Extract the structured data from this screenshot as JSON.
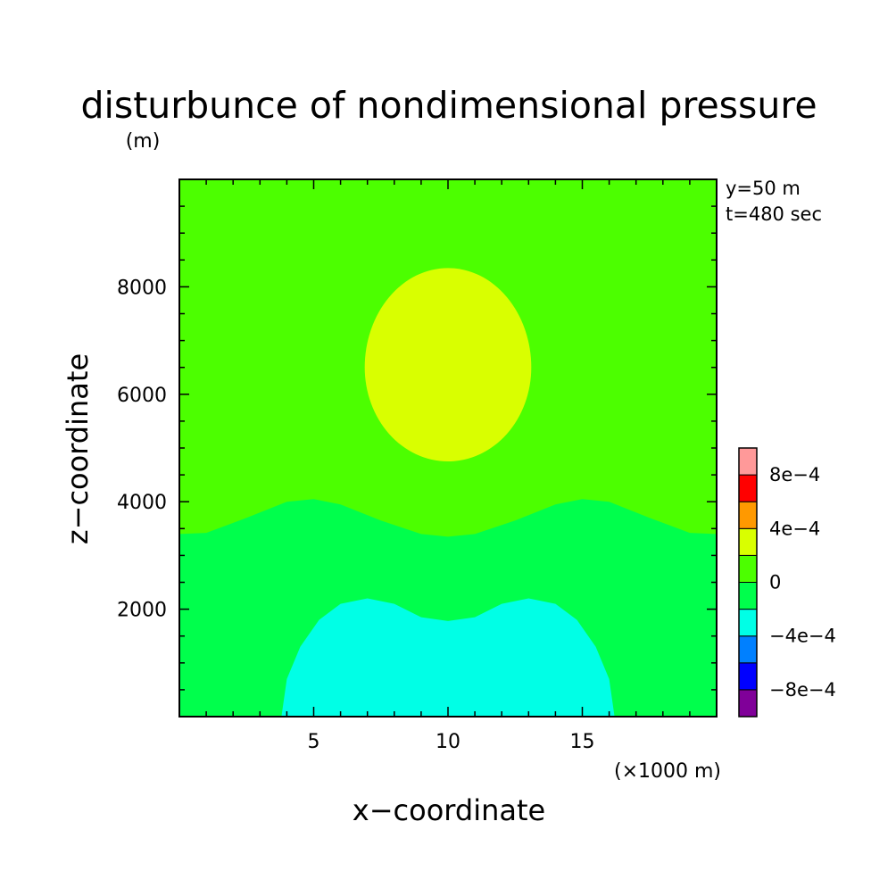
{
  "chart_data": {
    "type": "heatmap",
    "title": "disturbunce of nondimensional pressure",
    "ylabel": "z−coordinate",
    "xlabel": "x−coordinate",
    "y_unit_label": "(m)",
    "x_unit_label": "(×1000 m)",
    "annotations": [
      "y=50 m",
      "t=480 sec"
    ],
    "xlim": [
      0,
      20
    ],
    "ylim": [
      0,
      10000
    ],
    "x_ticks": [
      5,
      10,
      15
    ],
    "x_tick_labels": [
      "5",
      "10",
      "15"
    ],
    "y_ticks": [
      2000,
      4000,
      6000,
      8000
    ],
    "y_tick_labels": [
      "2000",
      "4000",
      "6000",
      "8000"
    ],
    "grid": false,
    "background_level": "0 to 2e-4",
    "regions": [
      {
        "level": "-2e-4 to 0",
        "color": "#00ff4c",
        "boundary": [
          [
            0,
            0
          ],
          [
            0,
            3400
          ],
          [
            1,
            3420
          ],
          [
            2.5,
            3700
          ],
          [
            4,
            4000
          ],
          [
            5,
            4050
          ],
          [
            6,
            3950
          ],
          [
            7.5,
            3650
          ],
          [
            9,
            3400
          ],
          [
            10,
            3350
          ],
          [
            11,
            3400
          ],
          [
            12.5,
            3650
          ],
          [
            14,
            3950
          ],
          [
            15,
            4050
          ],
          [
            16,
            4000
          ],
          [
            17.5,
            3700
          ],
          [
            19,
            3420
          ],
          [
            20,
            3400
          ],
          [
            20,
            0
          ]
        ]
      },
      {
        "level": "-4e-4 to -2e-4",
        "color": "#00ffe6",
        "boundary": [
          [
            3.8,
            0
          ],
          [
            4.0,
            700
          ],
          [
            4.5,
            1300
          ],
          [
            5.2,
            1800
          ],
          [
            6.0,
            2100
          ],
          [
            7.0,
            2200
          ],
          [
            8.0,
            2100
          ],
          [
            9.0,
            1850
          ],
          [
            10.0,
            1780
          ],
          [
            11.0,
            1850
          ],
          [
            12.0,
            2100
          ],
          [
            13.0,
            2200
          ],
          [
            14.0,
            2100
          ],
          [
            14.8,
            1800
          ],
          [
            15.5,
            1300
          ],
          [
            16.0,
            700
          ],
          [
            16.2,
            0
          ]
        ]
      },
      {
        "level": "2e-4 to 4e-4",
        "color": "#d9ff00",
        "center": [
          10,
          6500
        ],
        "radius_x": 3.1,
        "radius_top": 1850,
        "radius_bottom": 1750
      }
    ],
    "colorbar": {
      "levels": [
        {
          "color": "#800099"
        },
        {
          "color": "#0000ff"
        },
        {
          "color": "#0080ff"
        },
        {
          "color": "#00ffe6"
        },
        {
          "color": "#00ff4c"
        },
        {
          "color": "#4cff00"
        },
        {
          "color": "#d9ff00"
        },
        {
          "color": "#ff9900"
        },
        {
          "color": "#ff0000"
        },
        {
          "color": "#ff9999"
        }
      ],
      "labels": [
        {
          "text": "−8e−4",
          "boundary": 1
        },
        {
          "text": "−4e−4",
          "boundary": 3
        },
        {
          "text": "0",
          "boundary": 5
        },
        {
          "text": "4e−4",
          "boundary": 7
        },
        {
          "text": "8e−4",
          "boundary": 9
        }
      ]
    },
    "colors": {
      "background_fill": "#4cff00"
    }
  }
}
